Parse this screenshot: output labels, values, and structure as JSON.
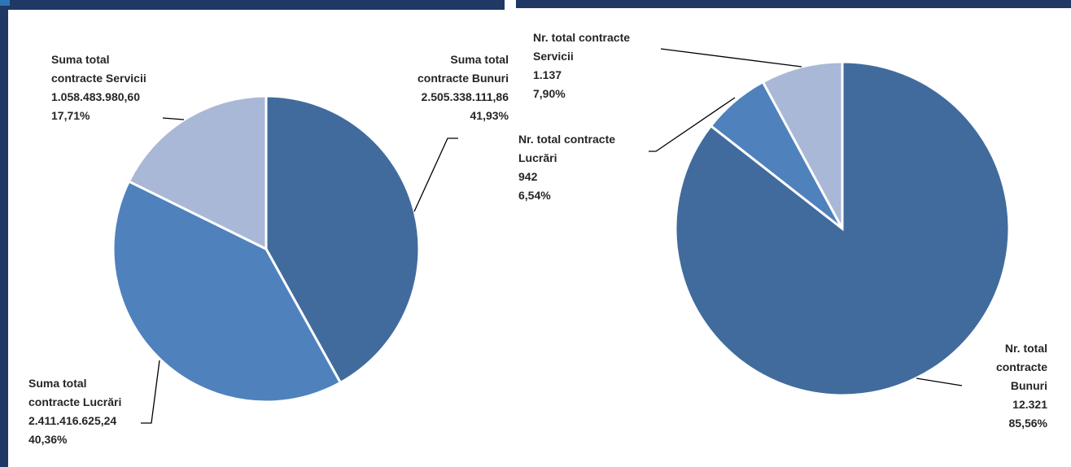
{
  "colors": {
    "frame": "#1f3864",
    "bunuri": "#416b9c",
    "lucrari": "#4f81bd",
    "servicii": "#a9b8d6"
  },
  "chart_data": [
    {
      "type": "pie",
      "title": "",
      "slices": [
        {
          "key": "bunuri",
          "label_lines": [
            "Suma total",
            "contracte Bunuri"
          ],
          "value": 2505338111.86,
          "value_text": "2.505.338.111,86",
          "percent": 41.93,
          "percent_text": "41,93%"
        },
        {
          "key": "lucrari",
          "label_lines": [
            "Suma total",
            "contracte Lucrări"
          ],
          "value": 2411416625.24,
          "value_text": "2.411.416.625,24",
          "percent": 40.36,
          "percent_text": "40,36%"
        },
        {
          "key": "servicii",
          "label_lines": [
            "Suma total",
            "contracte Servicii"
          ],
          "value": 1058483980.6,
          "value_text": "1.058.483.980,60",
          "percent": 17.71,
          "percent_text": "17,71%"
        }
      ]
    },
    {
      "type": "pie",
      "title": "",
      "slices": [
        {
          "key": "bunuri",
          "label_lines": [
            "Nr. total",
            "contracte",
            "Bunuri"
          ],
          "value": 12321,
          "value_text": "12.321",
          "percent": 85.56,
          "percent_text": "85,56%"
        },
        {
          "key": "lucrari",
          "label_lines": [
            "Nr. total contracte",
            "Lucrări"
          ],
          "value": 942,
          "value_text": "942",
          "percent": 6.54,
          "percent_text": "6,54%"
        },
        {
          "key": "servicii",
          "label_lines": [
            "Nr. total contracte",
            "Servicii"
          ],
          "value": 1137,
          "value_text": "1.137",
          "percent": 7.9,
          "percent_text": "7,90%"
        }
      ]
    }
  ]
}
